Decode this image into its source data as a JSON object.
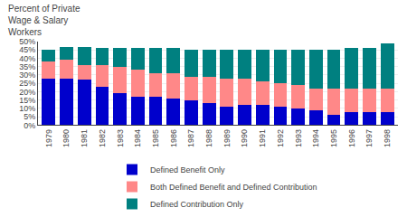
{
  "chart_data": {
    "type": "bar",
    "stacked": true,
    "title": "Percent of Private\nWage & Salary\nWorkers",
    "categories": [
      "1979",
      "1980",
      "1981",
      "1982",
      "1983",
      "1984",
      "1985",
      "1986",
      "1987",
      "1988",
      "1989",
      "1990",
      "1991",
      "1992",
      "1993",
      "1994",
      "1995",
      "1996",
      "1997",
      "1998"
    ],
    "series": [
      {
        "name": "Defined Benefit Only",
        "color": "#0000cc",
        "values": [
          28,
          28,
          27,
          23,
          19,
          17,
          17,
          16,
          15,
          13,
          11,
          12,
          12,
          11,
          10,
          9,
          6,
          8,
          8,
          8
        ]
      },
      {
        "name": "Both Defined Benefit and Defined Contribution",
        "color": "#ff8888",
        "values": [
          10,
          11,
          9,
          13,
          16,
          16,
          14,
          15,
          14,
          16,
          17,
          16,
          14,
          14,
          14,
          13,
          16,
          14,
          14,
          14
        ]
      },
      {
        "name": "Defined Contribution Only",
        "color": "#008080",
        "values": [
          7,
          8,
          11,
          10,
          11,
          13,
          15,
          15,
          16,
          16,
          17,
          17,
          19,
          20,
          21,
          23,
          23,
          24,
          24,
          27
        ]
      }
    ],
    "ylim": [
      0,
      50
    ],
    "yticks": [
      {
        "value": 0,
        "label": "0%"
      },
      {
        "value": 5,
        "label": "5%"
      },
      {
        "value": 10,
        "label": "10%"
      },
      {
        "value": 15,
        "label": "15%"
      },
      {
        "value": 20,
        "label": "20%"
      },
      {
        "value": 25,
        "label": "25%"
      },
      {
        "value": 30,
        "label": "30%"
      },
      {
        "value": 35,
        "label": "35%"
      },
      {
        "value": 40,
        "label": "40%"
      },
      {
        "value": 45,
        "label": "45%"
      },
      {
        "value": 50,
        "label": "50%"
      }
    ],
    "grid": true,
    "legend": "bottom"
  }
}
